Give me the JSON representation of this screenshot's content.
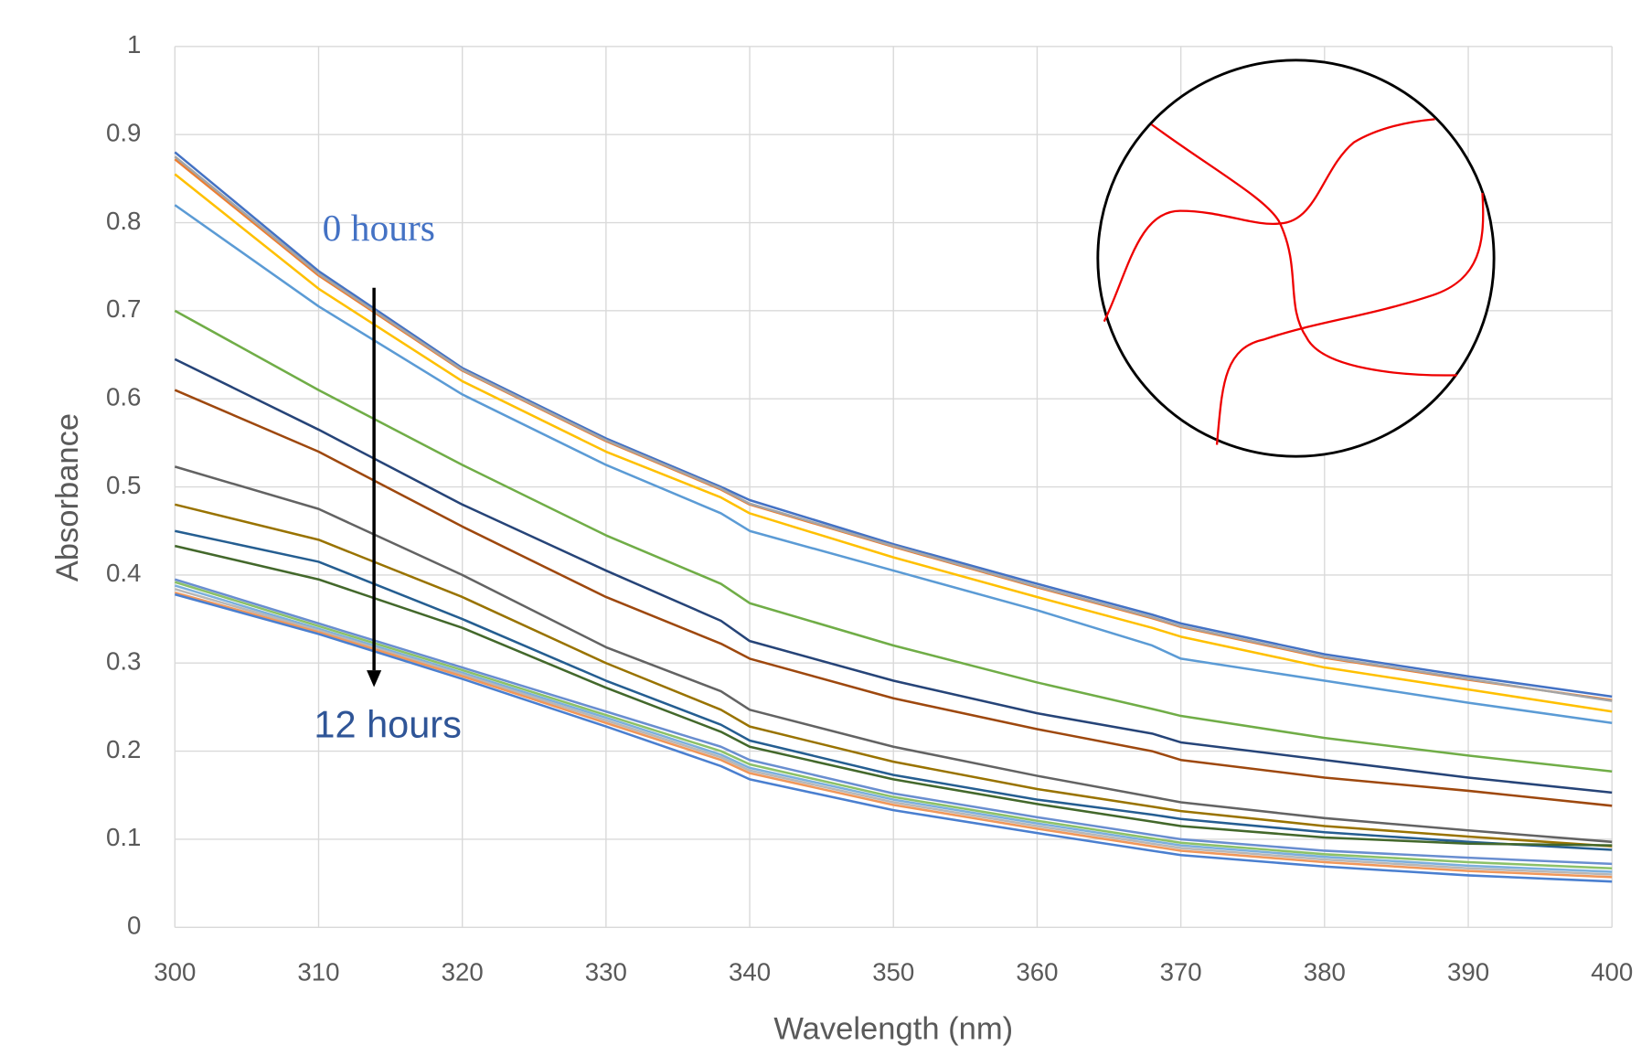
{
  "chart_data": {
    "type": "line",
    "xlabel": "Wavelength (nm)",
    "ylabel": "Absorbance",
    "annotations": [
      {
        "text": "0 hours"
      },
      {
        "text": "12 hours"
      }
    ],
    "x": [
      300,
      310,
      320,
      330,
      338,
      340,
      350,
      360,
      368,
      370,
      380,
      390,
      400
    ],
    "xlim": [
      300,
      400
    ],
    "xticks": [
      300,
      310,
      320,
      330,
      340,
      350,
      360,
      370,
      380,
      390,
      400
    ],
    "ylim": [
      0,
      1
    ],
    "yticks": [
      0,
      0.1,
      0.2,
      0.3,
      0.4,
      0.5,
      0.6,
      0.7,
      0.8,
      0.9,
      1
    ],
    "grid": true,
    "series": [
      {
        "color": "#4472c4",
        "values": [
          0.88,
          0.745,
          0.635,
          0.555,
          0.5,
          0.485,
          0.435,
          0.39,
          0.355,
          0.345,
          0.31,
          0.285,
          0.262
        ]
      },
      {
        "color": "#ed7d31",
        "values": [
          0.872,
          0.74,
          0.632,
          0.552,
          0.497,
          0.48,
          0.432,
          0.386,
          0.351,
          0.341,
          0.306,
          0.281,
          0.258
        ]
      },
      {
        "color": "#a5a5a5",
        "values": [
          0.875,
          0.742,
          0.633,
          0.553,
          0.498,
          0.481,
          0.433,
          0.387,
          0.352,
          0.342,
          0.307,
          0.282,
          0.257
        ]
      },
      {
        "color": "#ffc000",
        "values": [
          0.855,
          0.725,
          0.62,
          0.54,
          0.488,
          0.47,
          0.42,
          0.375,
          0.34,
          0.33,
          0.295,
          0.27,
          0.245
        ]
      },
      {
        "color": "#5b9bd5",
        "values": [
          0.82,
          0.705,
          0.605,
          0.525,
          0.47,
          0.45,
          0.405,
          0.36,
          0.32,
          0.305,
          0.28,
          0.255,
          0.232
        ]
      },
      {
        "color": "#70ad47",
        "values": [
          0.7,
          0.61,
          0.525,
          0.445,
          0.39,
          0.368,
          0.32,
          0.278,
          0.248,
          0.24,
          0.215,
          0.195,
          0.177
        ]
      },
      {
        "color": "#264478",
        "values": [
          0.645,
          0.565,
          0.48,
          0.405,
          0.348,
          0.325,
          0.28,
          0.243,
          0.22,
          0.21,
          0.19,
          0.17,
          0.153
        ]
      },
      {
        "color": "#9e480e",
        "values": [
          0.61,
          0.54,
          0.455,
          0.375,
          0.322,
          0.305,
          0.26,
          0.225,
          0.2,
          0.19,
          0.17,
          0.155,
          0.138
        ]
      },
      {
        "color": "#636363",
        "values": [
          0.523,
          0.475,
          0.4,
          0.318,
          0.268,
          0.247,
          0.205,
          0.172,
          0.148,
          0.142,
          0.124,
          0.11,
          0.097
        ]
      },
      {
        "color": "#997300",
        "values": [
          0.48,
          0.44,
          0.375,
          0.3,
          0.247,
          0.228,
          0.188,
          0.157,
          0.137,
          0.132,
          0.115,
          0.103,
          0.092
        ]
      },
      {
        "color": "#255e91",
        "values": [
          0.45,
          0.415,
          0.35,
          0.28,
          0.23,
          0.212,
          0.173,
          0.145,
          0.128,
          0.123,
          0.108,
          0.097,
          0.088
        ]
      },
      {
        "color": "#43682b",
        "values": [
          0.433,
          0.395,
          0.34,
          0.272,
          0.222,
          0.205,
          0.168,
          0.14,
          0.12,
          0.115,
          0.102,
          0.095,
          0.093
        ]
      },
      {
        "color": "#698ed0",
        "values": [
          0.395,
          0.345,
          0.295,
          0.245,
          0.205,
          0.19,
          0.152,
          0.125,
          0.105,
          0.1,
          0.087,
          0.079,
          0.072
        ]
      },
      {
        "color": "#8cc168",
        "values": [
          0.392,
          0.342,
          0.292,
          0.241,
          0.2,
          0.185,
          0.148,
          0.121,
          0.101,
          0.096,
          0.083,
          0.074,
          0.067
        ]
      },
      {
        "color": "#7cafdd",
        "values": [
          0.388,
          0.339,
          0.289,
          0.238,
          0.196,
          0.181,
          0.145,
          0.118,
          0.098,
          0.093,
          0.08,
          0.07,
          0.063
        ]
      },
      {
        "color": "#b7b7b7",
        "values": [
          0.384,
          0.337,
          0.287,
          0.235,
          0.193,
          0.178,
          0.142,
          0.115,
          0.095,
          0.09,
          0.077,
          0.067,
          0.06
        ]
      },
      {
        "color": "#f1975a",
        "values": [
          0.38,
          0.335,
          0.285,
          0.232,
          0.19,
          0.175,
          0.139,
          0.112,
          0.092,
          0.087,
          0.074,
          0.064,
          0.057
        ]
      },
      {
        "color": "#4a7fd0",
        "values": [
          0.378,
          0.333,
          0.282,
          0.228,
          0.183,
          0.168,
          0.133,
          0.107,
          0.087,
          0.082,
          0.069,
          0.059,
          0.052
        ]
      }
    ]
  }
}
